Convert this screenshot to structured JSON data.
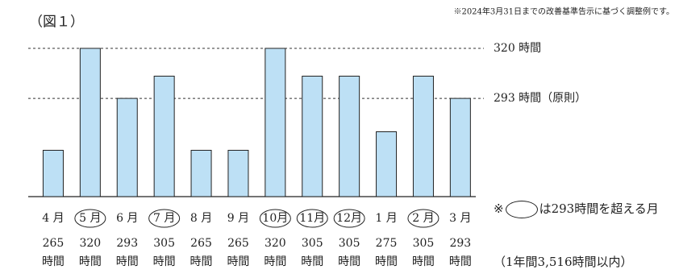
{
  "chart_data": {
    "type": "bar",
    "title": "（図１）",
    "note": "※2024年3月31日までの改善基準告示に基づく調整例です。",
    "categories": [
      "4 月",
      "5 月",
      "6 月",
      "7 月",
      "8 月",
      "9 月",
      "10月",
      "11月",
      "12月",
      "1 月",
      "2 月",
      "3 月"
    ],
    "values": [
      265,
      320,
      293,
      305,
      265,
      265,
      320,
      305,
      305,
      275,
      305,
      293
    ],
    "value_labels": [
      "265時間",
      "320時間",
      "293時間",
      "305時間",
      "265時間",
      "265時間",
      "320時間",
      "305時間",
      "305時間",
      "275時間",
      "305時間",
      "293時間"
    ],
    "highlight": [
      false,
      true,
      false,
      true,
      false,
      false,
      true,
      true,
      true,
      false,
      true,
      false
    ],
    "color": "#bde0f5",
    "ylim": [
      240,
      320
    ],
    "reference_lines": [
      {
        "value": 320,
        "label": "320 時間"
      },
      {
        "value": 293,
        "label": "293 時間（原則）"
      }
    ],
    "legend_prefix": "※",
    "legend_text": "は293時間を超える月",
    "total_note": "（1年間3,516時間以内）"
  }
}
